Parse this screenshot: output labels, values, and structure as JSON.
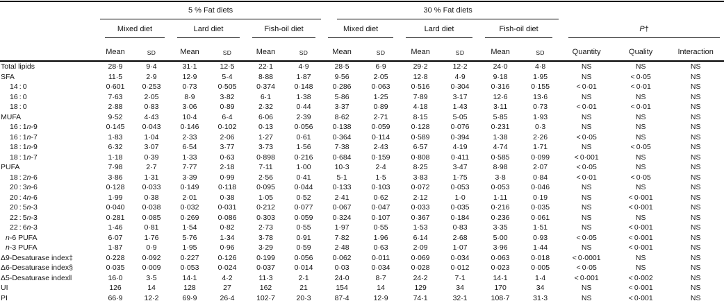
{
  "colors": {
    "background": "#ffffff",
    "text": "#131313",
    "rule": "#000000"
  },
  "table": {
    "groups": [
      {
        "label": "5 % Fat diets",
        "diets": [
          "Mixed diet",
          "Lard diet",
          "Fish-oil diet"
        ]
      },
      {
        "label": "30 % Fat diets",
        "diets": [
          "Mixed diet",
          "Lard diet",
          "Fish-oil diet"
        ]
      }
    ],
    "stat_headers": [
      "Mean",
      "SD"
    ],
    "p_group": {
      "label_html": "<i>P</i>†",
      "columns": [
        "Quantity",
        "Quality",
        "Interaction"
      ]
    },
    "rows": [
      {
        "label_html": "Total lipids",
        "indent": 0,
        "values": [
          "28·9",
          "9·4",
          "31·1",
          "12·5",
          "22·1",
          "4·9",
          "28·5",
          "6·9",
          "29·2",
          "12·2",
          "24·0",
          "4·8",
          "NS",
          "NS",
          "NS"
        ]
      },
      {
        "label_html": "SFA",
        "indent": 0,
        "values": [
          "11·5",
          "2·9",
          "12·9",
          "5·4",
          "8·88",
          "1·87",
          "9·56",
          "2·05",
          "12·8",
          "4·9",
          "9·18",
          "1·95",
          "NS",
          "< 0·05",
          "NS"
        ]
      },
      {
        "label_html": "14 : 0",
        "indent": 2,
        "values": [
          "0·601",
          "0·253",
          "0·73",
          "0·505",
          "0·374",
          "0·148",
          "0·286",
          "0·063",
          "0·516",
          "0·304",
          "0·316",
          "0·155",
          "< 0·01",
          "< 0·01",
          "NS"
        ]
      },
      {
        "label_html": "16 : 0",
        "indent": 2,
        "values": [
          "7·63",
          "2·05",
          "8·9",
          "3·82",
          "6·1",
          "1·38",
          "5·86",
          "1·25",
          "7·89",
          "3·17",
          "12·6",
          "13·6",
          "NS",
          "NS",
          "NS"
        ]
      },
      {
        "label_html": "18 : 0",
        "indent": 2,
        "values": [
          "2·88",
          "0·83",
          "3·06",
          "0·89",
          "2·32",
          "0·44",
          "3·37",
          "0·89",
          "4·18",
          "1·43",
          "3·11",
          "0·73",
          "< 0·01",
          "< 0·01",
          "NS"
        ]
      },
      {
        "label_html": "MUFA",
        "indent": 0,
        "values": [
          "9·52",
          "4·43",
          "10·4",
          "6·4",
          "6·06",
          "2·39",
          "8·62",
          "2·71",
          "8·15",
          "5·05",
          "5·85",
          "1·93",
          "NS",
          "NS",
          "NS"
        ]
      },
      {
        "label_html": "16 : 1<i>n</i>-9",
        "indent": 2,
        "values": [
          "0·145",
          "0·043",
          "0·146",
          "0·102",
          "0·13",
          "0·056",
          "0·138",
          "0·059",
          "0·128",
          "0·076",
          "0·231",
          "0·3",
          "NS",
          "NS",
          "NS"
        ]
      },
      {
        "label_html": "16 : 1<i>n</i>-7",
        "indent": 2,
        "values": [
          "1·83",
          "1·04",
          "2·33",
          "2·06",
          "1·27",
          "0·61",
          "0·364",
          "0·114",
          "0·589",
          "0·394",
          "1·38",
          "2·26",
          "< 0·05",
          "NS",
          "NS"
        ]
      },
      {
        "label_html": "18 : 1<i>n</i>-9",
        "indent": 2,
        "values": [
          "6·32",
          "3·07",
          "6·54",
          "3·77",
          "3·73",
          "1·56",
          "7·38",
          "2·43",
          "6·57",
          "4·19",
          "4·74",
          "1·71",
          "NS",
          "< 0·05",
          "NS"
        ]
      },
      {
        "label_html": "18 : 1<i>n</i>-7",
        "indent": 2,
        "values": [
          "1·18",
          "0·39",
          "1·33",
          "0·63",
          "0·898",
          "0·216",
          "0·684",
          "0·159",
          "0·808",
          "0·411",
          "0·585",
          "0·099",
          "< 0·001",
          "NS",
          "NS"
        ]
      },
      {
        "label_html": "PUFA",
        "indent": 0,
        "values": [
          "7·98",
          "2·7",
          "7·77",
          "2·18",
          "7·11",
          "1·00",
          "10·3",
          "2·4",
          "8·25",
          "3·47",
          "8·98",
          "2·07",
          "< 0·05",
          "NS",
          "NS"
        ]
      },
      {
        "label_html": "18 : 2<i>n</i>-6",
        "indent": 2,
        "values": [
          "3·86",
          "1·31",
          "3·39",
          "0·99",
          "2·56",
          "0·41",
          "5·1",
          "1·5",
          "3·83",
          "1·75",
          "3·8",
          "0·84",
          "< 0·01",
          "< 0·05",
          "NS"
        ]
      },
      {
        "label_html": "20 : 3<i>n</i>-6",
        "indent": 2,
        "values": [
          "0·128",
          "0·033",
          "0·149",
          "0·118",
          "0·095",
          "0·044",
          "0·133",
          "0·103",
          "0·072",
          "0·053",
          "0·053",
          "0·046",
          "NS",
          "NS",
          "NS"
        ]
      },
      {
        "label_html": "20 : 4<i>n</i>-6",
        "indent": 2,
        "values": [
          "1·99",
          "0·38",
          "2·01",
          "0·38",
          "1·05",
          "0·52",
          "2·41",
          "0·62",
          "2·12",
          "1·0",
          "1·11",
          "0·19",
          "NS",
          "< 0·001",
          "NS"
        ]
      },
      {
        "label_html": "20 : 5<i>n</i>-3",
        "indent": 2,
        "values": [
          "0·040",
          "0·038",
          "0·032",
          "0·031",
          "0·212",
          "0·077",
          "0·067",
          "0·047",
          "0·033",
          "0·035",
          "0·216",
          "0·035",
          "NS",
          "< 0·001",
          "NS"
        ]
      },
      {
        "label_html": "22 : 5<i>n</i>-3",
        "indent": 2,
        "values": [
          "0·281",
          "0·085",
          "0·269",
          "0·086",
          "0·303",
          "0·059",
          "0·324",
          "0·107",
          "0·367",
          "0·184",
          "0·236",
          "0·061",
          "NS",
          "NS",
          "NS"
        ]
      },
      {
        "label_html": "22 : 6<i>n</i>-3",
        "indent": 2,
        "values": [
          "1·46",
          "0·81",
          "1·54",
          "0·82",
          "2·73",
          "0·55",
          "1·97",
          "0·55",
          "1·53",
          "0·83",
          "3·35",
          "1·51",
          "NS",
          "< 0·001",
          "NS"
        ]
      },
      {
        "label_html": "<i>n</i>-6 PUFA",
        "indent": 1,
        "values": [
          "6·07",
          "1·76",
          "5·76",
          "1·34",
          "3·78",
          "0·91",
          "7·82",
          "1·96",
          "6·14",
          "2·68",
          "5·00",
          "0·93",
          "< 0·05",
          "< 0·001",
          "NS"
        ]
      },
      {
        "label_html": "<i>n</i>-3 PUFA",
        "indent": 1,
        "values": [
          "1·87",
          "0·9",
          "1·95",
          "0·96",
          "3·29",
          "0·59",
          "2·48",
          "0·63",
          "2·09",
          "1·07",
          "3·96",
          "1·44",
          "NS",
          "< 0·001",
          "NS"
        ]
      },
      {
        "label_html": "Δ9-Desaturase index‡",
        "indent": 0,
        "values": [
          "0·228",
          "0·092",
          "0·227",
          "0·126",
          "0·199",
          "0·056",
          "0·062",
          "0·011",
          "0·069",
          "0·034",
          "0·063",
          "0·018",
          "< 0·0001",
          "NS",
          "NS"
        ]
      },
      {
        "label_html": "Δ6-Desaturase index§",
        "indent": 0,
        "values": [
          "0·035",
          "0·009",
          "0·053",
          "0·024",
          "0·037",
          "0·014",
          "0·03",
          "0·034",
          "0·028",
          "0·012",
          "0·023",
          "0·005",
          "< 0·05",
          "NS",
          "NS"
        ]
      },
      {
        "label_html": "Δ5-Desaturase index‖",
        "indent": 0,
        "values": [
          "16·0",
          "3·5",
          "14·1",
          "4·2",
          "11·3",
          "2·1",
          "24·0",
          "8·7",
          "24·2",
          "7·1",
          "14·1",
          "1·4",
          "< 0·001",
          "< 0·002",
          "NS"
        ]
      },
      {
        "label_html": "UI",
        "indent": 0,
        "values": [
          "126",
          "14",
          "128",
          "27",
          "162",
          "21",
          "154",
          "14",
          "129",
          "34",
          "170",
          "34",
          "NS",
          "< 0·001",
          "NS"
        ]
      },
      {
        "label_html": "PI",
        "indent": 0,
        "values": [
          "66·9",
          "12·2",
          "69·9",
          "26·4",
          "102·7",
          "20·3",
          "87·4",
          "12·9",
          "74·1",
          "32·1",
          "108·7",
          "31·3",
          "NS",
          "< 0·001",
          "NS"
        ]
      }
    ]
  }
}
